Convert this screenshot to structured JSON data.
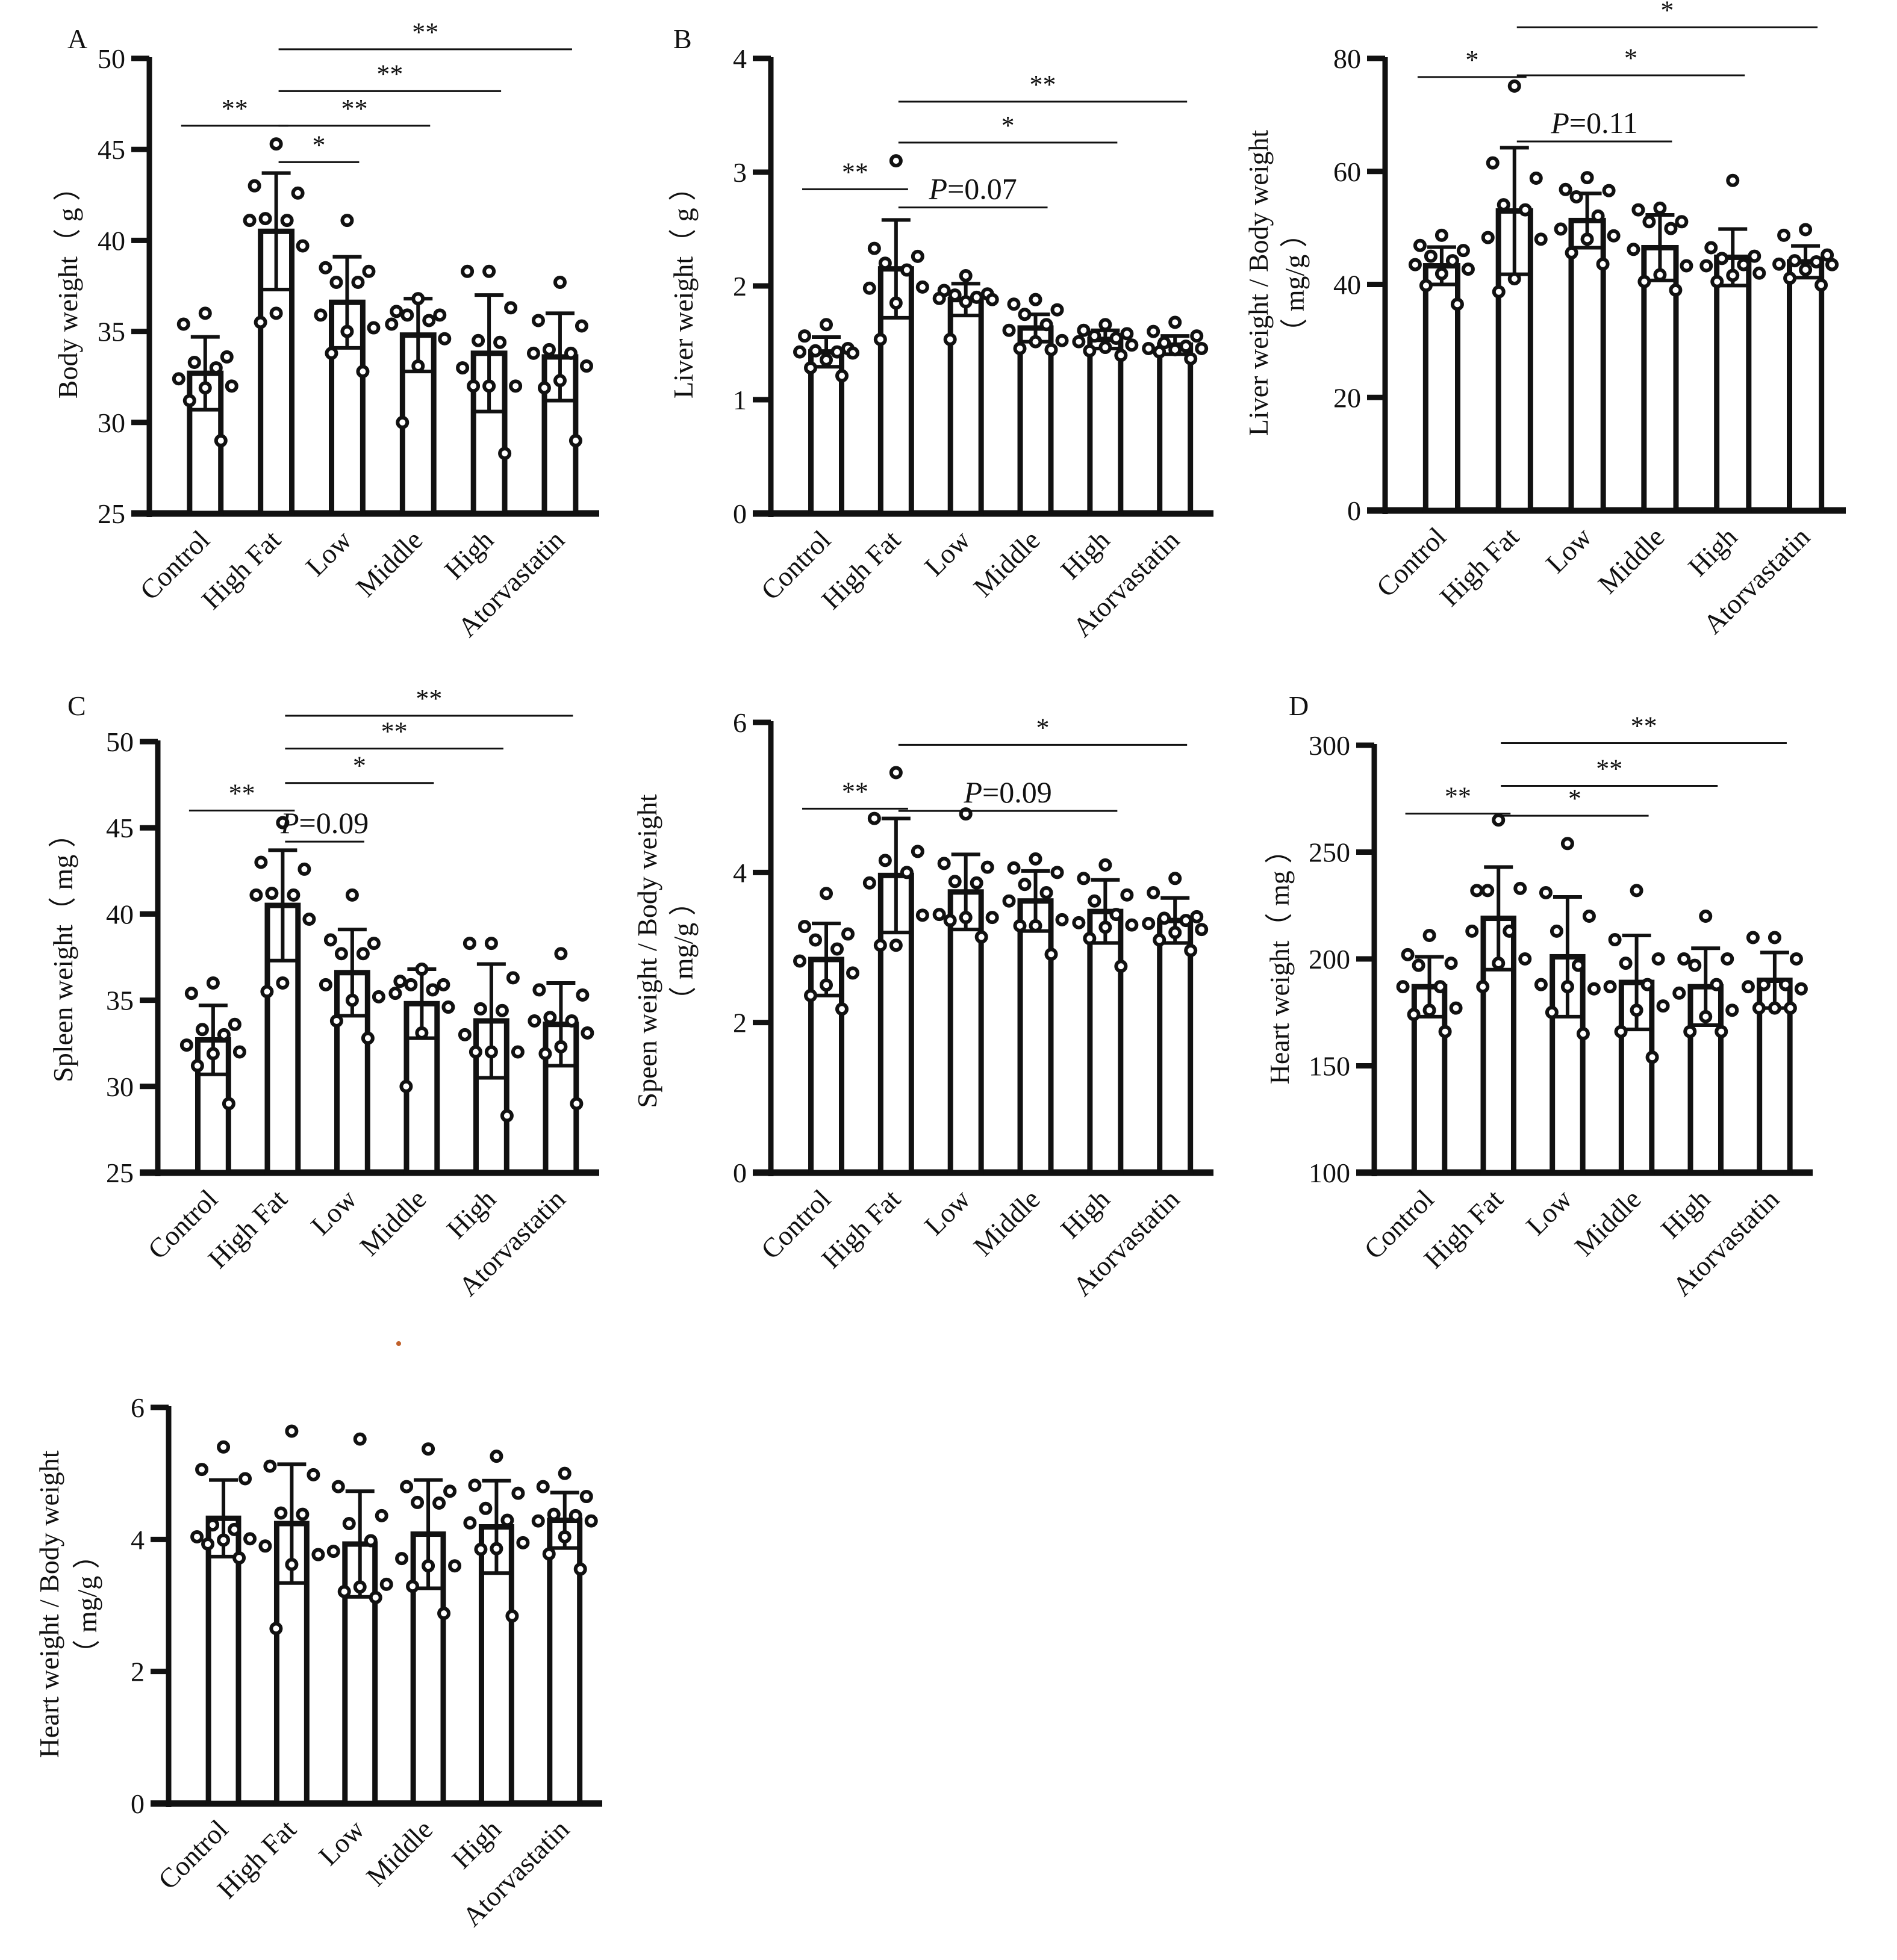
{
  "figure": {
    "stray_mark_color": "#c0602a",
    "ink_color": "#111111"
  },
  "chart_data": [
    {
      "id": "body-weight",
      "panel_letter": "A",
      "type": "bar",
      "title": "",
      "xlabel": "",
      "ylabel": "Body weight（ g ）",
      "ylabel_line2": "",
      "ylim": [
        25,
        50
      ],
      "yticks": [
        25,
        30,
        35,
        40,
        45,
        50
      ],
      "categories": [
        "Control",
        "High Fat",
        "Low",
        "Middle",
        "High",
        "Atorvastatin"
      ],
      "means": [
        32.7,
        40.5,
        36.6,
        34.8,
        33.8,
        33.6
      ],
      "sd": [
        2.0,
        3.2,
        2.5,
        2.0,
        3.2,
        2.4
      ],
      "points": [
        [
          36.0,
          35.4,
          33.6,
          33.3,
          33.0,
          32.4,
          32.0,
          31.9,
          31.2,
          29.0
        ],
        [
          45.3,
          43.0,
          42.6,
          41.2,
          41.1,
          41.1,
          39.7,
          36.0,
          35.5
        ],
        [
          41.1,
          38.5,
          38.3,
          37.7,
          37.7,
          35.9,
          35.2,
          35.0,
          33.8,
          32.8
        ],
        [
          36.8,
          36.1,
          35.9,
          35.9,
          35.6,
          35.4,
          34.6,
          33.1,
          30.0
        ],
        [
          38.3,
          38.3,
          36.3,
          34.5,
          34.4,
          33.0,
          32.0,
          32.0,
          32.0,
          28.3
        ],
        [
          37.7,
          35.6,
          35.3,
          34.0,
          33.8,
          33.8,
          33.1,
          32.3,
          31.9,
          29.0
        ]
      ],
      "significance": [
        {
          "from": 0,
          "to": 1,
          "label": "**",
          "level": 46.3
        },
        {
          "from": 1,
          "to": 2,
          "label": "*",
          "level": 44.3
        },
        {
          "from": 1,
          "to": 3,
          "label": "**",
          "level": 46.3
        },
        {
          "from": 1,
          "to": 4,
          "label": "**",
          "level": 48.2
        },
        {
          "from": 1,
          "to": 5,
          "label": "**",
          "level": 50.5
        }
      ]
    },
    {
      "id": "liver-weight",
      "panel_letter": "B",
      "type": "bar",
      "title": "",
      "xlabel": "",
      "ylabel": "Liver weight（ g ）",
      "ylabel_line2": "",
      "ylim": [
        0,
        4
      ],
      "yticks": [
        0,
        1,
        2,
        3,
        4
      ],
      "categories": [
        "Control",
        "High Fat",
        "Low",
        "Middle",
        "High",
        "Atorvastatin"
      ],
      "means": [
        1.42,
        2.15,
        1.88,
        1.63,
        1.53,
        1.48
      ],
      "sd": [
        0.13,
        0.43,
        0.14,
        0.12,
        0.08,
        0.08
      ],
      "points": [
        [
          1.66,
          1.56,
          1.45,
          1.43,
          1.42,
          1.42,
          1.41,
          1.35,
          1.28,
          1.21
        ],
        [
          3.1,
          2.33,
          2.26,
          2.2,
          2.14,
          1.98,
          1.99,
          1.85,
          1.53
        ],
        [
          2.09,
          1.96,
          1.93,
          1.92,
          1.9,
          1.89,
          1.88,
          1.86,
          1.53
        ],
        [
          1.88,
          1.84,
          1.79,
          1.75,
          1.66,
          1.61,
          1.52,
          1.51,
          1.45,
          1.44
        ],
        [
          1.66,
          1.61,
          1.58,
          1.56,
          1.54,
          1.51,
          1.48,
          1.46,
          1.43,
          1.39
        ],
        [
          1.68,
          1.6,
          1.56,
          1.5,
          1.47,
          1.45,
          1.45,
          1.44,
          1.42,
          1.36
        ]
      ],
      "significance": [
        {
          "from": 0,
          "to": 1,
          "label": "**",
          "level": 2.85
        },
        {
          "from": 1,
          "to": 3,
          "label": "P=0.07",
          "level": 2.69
        },
        {
          "from": 1,
          "to": 4,
          "label": "*",
          "level": 3.26
        },
        {
          "from": 1,
          "to": 5,
          "label": "**",
          "level": 3.62
        }
      ]
    },
    {
      "id": "liver-body-ratio",
      "panel_letter": "",
      "type": "bar",
      "title": "",
      "xlabel": "",
      "ylabel": "Liver weight / Body weight",
      "ylabel_line2": "（ mg/g ）",
      "ylim": [
        0,
        80
      ],
      "yticks": [
        0,
        20,
        40,
        60,
        80
      ],
      "categories": [
        "Control",
        "High Fat",
        "Low",
        "Middle",
        "High",
        "Atorvastatin"
      ],
      "means": [
        43.3,
        53.0,
        51.3,
        46.5,
        44.8,
        44.0
      ],
      "sd": [
        3.3,
        11.2,
        4.8,
        5.8,
        5.0,
        2.8
      ],
      "points": [
        [
          48.7,
          46.9,
          46.0,
          45.0,
          44.2,
          43.5,
          42.7,
          41.9,
          39.8,
          36.5
        ],
        [
          75.1,
          61.5,
          58.8,
          54.1,
          53.2,
          48.3,
          48.0,
          41.0,
          38.7
        ],
        [
          58.9,
          56.8,
          56.6,
          55.5,
          52.1,
          49.8,
          48.6,
          48.0,
          45.6,
          43.6
        ],
        [
          53.5,
          53.2,
          51.1,
          51.1,
          49.9,
          46.2,
          43.3,
          41.7,
          40.5,
          39.0
        ],
        [
          58.4,
          46.5,
          45.0,
          44.6,
          43.5,
          43.3,
          42.0,
          41.6,
          40.5
        ],
        [
          49.7,
          48.7,
          45.2,
          44.2,
          44.0,
          43.6,
          43.5,
          42.6,
          41.1,
          39.9
        ]
      ],
      "significance": [
        {
          "from": 0,
          "to": 1,
          "label": "*",
          "level": 76.7
        },
        {
          "from": 1,
          "to": 3,
          "label": "P=0.11",
          "level": 65.3
        },
        {
          "from": 1,
          "to": 4,
          "label": "*",
          "level": 77.0
        },
        {
          "from": 1,
          "to": 5,
          "label": "*",
          "level": 85.5
        }
      ]
    },
    {
      "id": "spleen-weight",
      "panel_letter": "C",
      "type": "bar",
      "title": "",
      "xlabel": "",
      "ylabel": "Spleen weight（ mg ）",
      "ylabel_line2": "",
      "ylim": [
        25,
        50
      ],
      "yticks": [
        25,
        30,
        35,
        40,
        45,
        50
      ],
      "categories": [
        "Control",
        "High Fat",
        "Low",
        "Middle",
        "High",
        "Atorvastatin"
      ],
      "means": [
        32.7,
        40.5,
        36.6,
        34.8,
        33.8,
        33.6
      ],
      "sd": [
        2.0,
        3.2,
        2.5,
        2.0,
        3.3,
        2.4
      ],
      "points": [
        [
          36.0,
          35.4,
          33.6,
          33.3,
          33.0,
          32.4,
          32.0,
          31.9,
          31.2,
          29.0
        ],
        [
          45.3,
          43.0,
          42.6,
          41.2,
          41.1,
          41.1,
          39.7,
          36.0,
          35.5
        ],
        [
          41.1,
          38.5,
          38.3,
          37.7,
          37.7,
          35.9,
          35.2,
          35.0,
          33.8,
          32.8
        ],
        [
          36.8,
          36.1,
          35.9,
          35.9,
          35.6,
          35.4,
          34.6,
          33.1,
          30.0
        ],
        [
          38.3,
          38.3,
          36.3,
          34.5,
          34.4,
          33.0,
          32.0,
          32.0,
          32.0,
          28.3
        ],
        [
          37.7,
          35.6,
          35.3,
          34.0,
          33.8,
          33.8,
          33.1,
          32.3,
          31.9,
          29.0
        ]
      ],
      "significance": [
        {
          "from": 0,
          "to": 1,
          "label": "**",
          "level": 46.0
        },
        {
          "from": 1,
          "to": 2,
          "label": "P=0.09",
          "level": 44.2
        },
        {
          "from": 1,
          "to": 3,
          "label": "*",
          "level": 47.6
        },
        {
          "from": 1,
          "to": 4,
          "label": "**",
          "level": 49.6
        },
        {
          "from": 1,
          "to": 5,
          "label": "**",
          "level": 51.5
        }
      ]
    },
    {
      "id": "spleen-body-ratio",
      "panel_letter": "",
      "type": "bar",
      "title": "",
      "xlabel": "",
      "ylabel": "Speen weight / Body weight",
      "ylabel_line2": "（ mg/g ）",
      "ylim": [
        0,
        6
      ],
      "yticks": [
        0,
        2,
        4,
        6
      ],
      "categories": [
        "Control",
        "High Fat",
        "Low",
        "Middle",
        "High",
        "Atorvastatin"
      ],
      "means": [
        2.84,
        3.96,
        3.74,
        3.62,
        3.48,
        3.36
      ],
      "sd": [
        0.48,
        0.76,
        0.5,
        0.4,
        0.42,
        0.3
      ],
      "points": [
        [
          3.72,
          3.28,
          3.18,
          3.1,
          2.98,
          2.82,
          2.66,
          2.5,
          2.36,
          2.18
        ],
        [
          5.33,
          4.72,
          4.28,
          4.16,
          4.0,
          3.86,
          3.43,
          3.03,
          3.03
        ],
        [
          4.78,
          4.12,
          4.07,
          3.88,
          3.86,
          3.44,
          3.4,
          3.4,
          3.36,
          3.14
        ],
        [
          4.18,
          4.06,
          4.0,
          3.84,
          3.73,
          3.62,
          3.37,
          3.29,
          3.29,
          2.91
        ],
        [
          4.1,
          3.92,
          3.7,
          3.62,
          3.44,
          3.33,
          3.3,
          3.27,
          3.12,
          2.75
        ],
        [
          3.92,
          3.73,
          3.41,
          3.39,
          3.36,
          3.32,
          3.24,
          3.2,
          3.1,
          2.96
        ]
      ],
      "significance": [
        {
          "from": 0,
          "to": 1,
          "label": "**",
          "level": 4.85
        },
        {
          "from": 1,
          "to": 4,
          "label": "P=0.09",
          "level": 4.82
        },
        {
          "from": 1,
          "to": 5,
          "label": "*",
          "level": 5.7
        }
      ]
    },
    {
      "id": "heart-weight",
      "panel_letter": "D",
      "type": "bar",
      "title": "",
      "xlabel": "",
      "ylabel": "Heart weight（ mg ）",
      "ylabel_line2": "",
      "ylim": [
        100,
        300
      ],
      "yticks": [
        100,
        150,
        200,
        250,
        300
      ],
      "categories": [
        "Control",
        "High Fat",
        "Low",
        "Middle",
        "High",
        "Atorvastatin"
      ],
      "means": [
        187,
        219,
        201,
        189,
        187,
        190
      ],
      "sd": [
        14,
        24,
        28,
        22,
        18,
        13
      ],
      "points": [
        [
          211,
          202,
          198,
          197,
          187,
          187,
          177,
          176,
          174,
          166
        ],
        [
          265,
          232,
          233,
          232,
          213,
          213,
          200,
          198,
          187
        ],
        [
          254,
          231,
          220,
          213,
          197,
          188,
          186,
          187,
          175,
          165
        ],
        [
          232,
          209,
          200,
          198,
          188,
          187,
          178,
          176,
          166,
          154
        ],
        [
          220,
          200,
          200,
          197,
          188,
          184,
          176,
          173,
          166,
          166
        ],
        [
          210,
          210,
          200,
          188,
          188,
          187,
          186,
          177,
          177,
          177
        ]
      ],
      "significance": [
        {
          "from": 0,
          "to": 1,
          "label": "**",
          "level": 268
        },
        {
          "from": 1,
          "to": 3,
          "label": "*",
          "level": 267
        },
        {
          "from": 1,
          "to": 4,
          "label": "**",
          "level": 281
        },
        {
          "from": 1,
          "to": 5,
          "label": "**",
          "level": 301
        }
      ]
    },
    {
      "id": "heart-body-ratio",
      "panel_letter": "",
      "type": "bar",
      "title": "",
      "xlabel": "",
      "ylabel": "Heart weight / Body weight",
      "ylabel_line2": "（ mg/g ）",
      "ylim": [
        0,
        6
      ],
      "yticks": [
        0,
        2,
        4,
        6
      ],
      "categories": [
        "Control",
        "High Fat",
        "Low",
        "Middle",
        "High",
        "Atorvastatin"
      ],
      "means": [
        4.32,
        4.24,
        3.93,
        4.08,
        4.19,
        4.29
      ],
      "sd": [
        0.58,
        0.9,
        0.8,
        0.82,
        0.7,
        0.42
      ],
      "points": [
        [
          5.4,
          5.06,
          4.92,
          4.22,
          4.15,
          4.04,
          4.01,
          3.99,
          3.93,
          3.72
        ],
        [
          5.64,
          5.11,
          4.98,
          4.4,
          4.38,
          3.9,
          3.77,
          3.62,
          2.65
        ],
        [
          5.52,
          4.8,
          4.36,
          4.24,
          3.98,
          3.82,
          3.32,
          3.28,
          3.21,
          3.12
        ],
        [
          5.37,
          4.8,
          4.73,
          4.56,
          4.55,
          3.71,
          3.6,
          3.6,
          3.29,
          2.88
        ],
        [
          5.26,
          4.82,
          4.7,
          4.47,
          4.29,
          4.25,
          3.95,
          3.86,
          3.85,
          2.84
        ],
        [
          5.0,
          4.8,
          4.65,
          4.38,
          4.36,
          4.28,
          4.28,
          4.04,
          3.78,
          3.55
        ]
      ],
      "significance": []
    }
  ]
}
